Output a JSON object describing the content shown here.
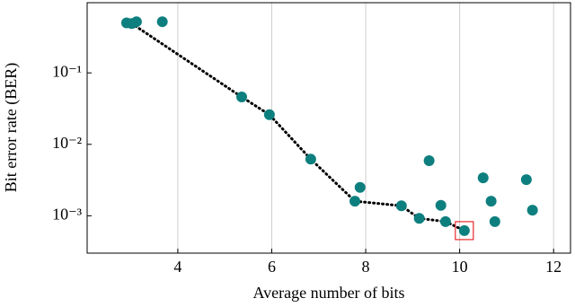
{
  "chart_data": {
    "type": "scatter",
    "xlabel": "Average number of bits",
    "ylabel": "Bit error rate (BER)",
    "xlim": [
      2.07,
      12.36
    ],
    "xticks": [
      4,
      6,
      8,
      10,
      12
    ],
    "ylim": [
      0.0003,
      0.96
    ],
    "ylog": true,
    "yticks": [
      {
        "value": 0.001,
        "label": "10⁻³"
      },
      {
        "value": 0.01,
        "label": "10⁻²"
      },
      {
        "value": 0.1,
        "label": "10⁻¹"
      }
    ],
    "grid": "x",
    "highlight_color": "#e8292b",
    "series": [
      {
        "color": "#0e7f7f",
        "style": "markers",
        "x": [
          2.91,
          3.02,
          3.12,
          3.67,
          5.36,
          5.95,
          6.83,
          7.77,
          7.88,
          8.76,
          9.14,
          9.35,
          9.6,
          9.7,
          10.1,
          10.5,
          10.67,
          10.75,
          11.42,
          11.55
        ],
        "values": [
          0.5,
          0.49,
          0.52,
          0.52,
          0.046,
          0.026,
          0.0062,
          0.0016,
          0.0025,
          0.00138,
          0.00092,
          0.0059,
          0.0014,
          0.00083,
          0.00062,
          0.0034,
          0.0016,
          0.00083,
          0.0032,
          0.0012
        ]
      },
      {
        "color": "#000000",
        "style": "dotted",
        "x": [
          3.02,
          5.36,
          5.95,
          6.83,
          7.77,
          8.76,
          9.14,
          9.7,
          10.1
        ],
        "values": [
          0.49,
          0.046,
          0.026,
          0.0062,
          0.0016,
          0.00138,
          0.00092,
          0.00083,
          0.00062
        ]
      }
    ]
  }
}
